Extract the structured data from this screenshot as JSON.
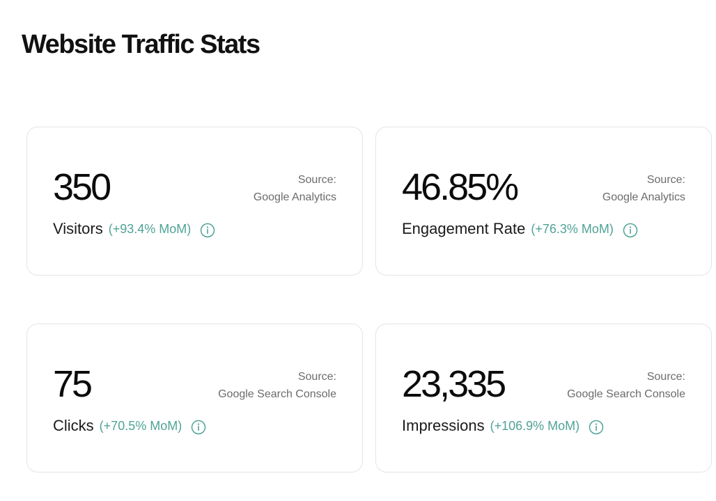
{
  "page": {
    "title": "Website Traffic Stats"
  },
  "colors": {
    "change_text": "#4fa396",
    "info_icon": "#4fa396",
    "card_border": "#e4e4e4",
    "source_text": "#6b6b6b"
  },
  "cards": [
    {
      "value": "350",
      "label": "Visitors",
      "change": "(+93.4% MoM)",
      "source_label": "Source:",
      "source_name": "Google Analytics",
      "icon": "info-icon"
    },
    {
      "value": "46.85%",
      "label": "Engagement Rate",
      "change": "(+76.3% MoM)",
      "source_label": "Source:",
      "source_name": "Google Analytics",
      "icon": "info-icon"
    },
    {
      "value": "75",
      "label": "Clicks",
      "change": "(+70.5% MoM)",
      "source_label": "Source:",
      "source_name": "Google Search Console",
      "icon": "info-icon"
    },
    {
      "value": "23,335",
      "label": "Impressions",
      "change": "(+106.9% MoM)",
      "source_label": "Source:",
      "source_name": "Google Search Console",
      "icon": "info-icon"
    }
  ]
}
